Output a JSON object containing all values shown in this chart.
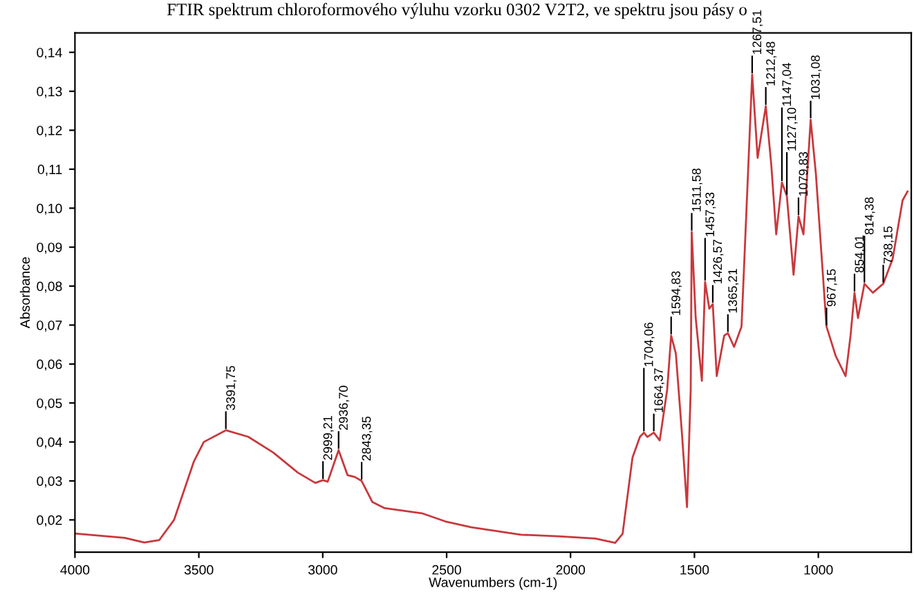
{
  "chart_data": {
    "type": "line",
    "title": "FTIR spektrum chloroformového výluhu vzorku 0302 V2T2, ve spektru jsou pásy o",
    "xlabel": "Wavenumbers (cm-1)",
    "ylabel": "Absorbance",
    "xlim": [
      4000,
      625
    ],
    "ylim": [
      0.0117,
      0.145
    ],
    "xticks": [
      4000,
      3500,
      3000,
      2500,
      2000,
      1500,
      1000
    ],
    "yticks": [
      {
        "value": 0.02,
        "label": "0,02"
      },
      {
        "value": 0.03,
        "label": "0,03"
      },
      {
        "value": 0.04,
        "label": "0,04"
      },
      {
        "value": 0.05,
        "label": "0,05"
      },
      {
        "value": 0.06,
        "label": "0,06"
      },
      {
        "value": 0.07,
        "label": "0,07"
      },
      {
        "value": 0.08,
        "label": "0,08"
      },
      {
        "value": 0.09,
        "label": "0,09"
      },
      {
        "value": 0.1,
        "label": "0,10"
      },
      {
        "value": 0.11,
        "label": "0,11"
      },
      {
        "value": 0.12,
        "label": "0,12"
      },
      {
        "value": 0.13,
        "label": "0,13"
      },
      {
        "value": 0.14,
        "label": "0,14"
      }
    ],
    "grid": false,
    "marker": "none",
    "line_style": "solid",
    "series": [
      {
        "color": "#c8383c",
        "x": [
          4000,
          3800,
          3720,
          3660,
          3600,
          3520,
          3480,
          3391,
          3300,
          3200,
          3100,
          3030,
          2999,
          2980,
          2936,
          2900,
          2870,
          2843,
          2800,
          2750,
          2600,
          2500,
          2400,
          2200,
          2050,
          1900,
          1820,
          1790,
          1750,
          1720,
          1704,
          1690,
          1664,
          1640,
          1610,
          1594,
          1575,
          1550,
          1530,
          1515,
          1511,
          1495,
          1470,
          1457,
          1440,
          1426,
          1410,
          1380,
          1365,
          1340,
          1310,
          1290,
          1267,
          1245,
          1212,
          1190,
          1170,
          1147,
          1127,
          1100,
          1080,
          1060,
          1031,
          1010,
          967,
          930,
          890,
          870,
          854,
          840,
          814,
          780,
          738,
          700,
          660,
          640
        ],
        "values": [
          0.0165,
          0.0154,
          0.0142,
          0.0148,
          0.02,
          0.035,
          0.04,
          0.043,
          0.0413,
          0.0373,
          0.0321,
          0.0295,
          0.0302,
          0.0298,
          0.0379,
          0.0315,
          0.031,
          0.03,
          0.0246,
          0.023,
          0.0217,
          0.0195,
          0.0181,
          0.0162,
          0.0158,
          0.0152,
          0.0141,
          0.0164,
          0.036,
          0.0413,
          0.0424,
          0.0413,
          0.0424,
          0.0404,
          0.0534,
          0.0673,
          0.0627,
          0.0418,
          0.0233,
          0.0534,
          0.0939,
          0.0719,
          0.0557,
          0.0811,
          0.0742,
          0.0754,
          0.0569,
          0.0673,
          0.0679,
          0.0644,
          0.0696,
          0.0996,
          0.1343,
          0.1129,
          0.1262,
          0.1112,
          0.0933,
          0.1066,
          0.1031,
          0.0829,
          0.0979,
          0.0933,
          0.1227,
          0.1089,
          0.0696,
          0.0621,
          0.0569,
          0.0673,
          0.0783,
          0.0718,
          0.0806,
          0.0783,
          0.0806,
          0.087,
          0.102,
          0.1043
        ]
      }
    ],
    "annotations": [
      {
        "text": "3391,75",
        "x": 3391,
        "y": 0.043
      },
      {
        "text": "2999,21",
        "x": 2999,
        "y": 0.0302
      },
      {
        "text": "2936,70",
        "x": 2936,
        "y": 0.0379
      },
      {
        "text": "2843,35",
        "x": 2843,
        "y": 0.03
      },
      {
        "text": "1704,06",
        "x": 1704,
        "y": 0.0424
      },
      {
        "text": "1664,37",
        "x": 1664,
        "y": 0.0424
      },
      {
        "text": "1594,83",
        "x": 1594,
        "y": 0.0673
      },
      {
        "text": "1511,58",
        "x": 1511,
        "y": 0.0939
      },
      {
        "text": "1457,33",
        "x": 1457,
        "y": 0.0811
      },
      {
        "text": "1426,57",
        "x": 1426,
        "y": 0.0754
      },
      {
        "text": "1365,21",
        "x": 1365,
        "y": 0.0679
      },
      {
        "text": "1267,51",
        "x": 1267,
        "y": 0.1343
      },
      {
        "text": "1212,48",
        "x": 1212,
        "y": 0.1262
      },
      {
        "text": "1147,04",
        "x": 1147,
        "y": 0.1066
      },
      {
        "text": "1127,10",
        "x": 1127,
        "y": 0.1031
      },
      {
        "text": "1079,83",
        "x": 1080,
        "y": 0.0979
      },
      {
        "text": "1031,08",
        "x": 1031,
        "y": 0.1227
      },
      {
        "text": "967,15",
        "x": 967,
        "y": 0.0696
      },
      {
        "text": "854,01",
        "x": 854,
        "y": 0.0783
      },
      {
        "text": "814,38",
        "x": 814,
        "y": 0.0806
      },
      {
        "text": "738,15",
        "x": 738,
        "y": 0.0806
      }
    ]
  }
}
